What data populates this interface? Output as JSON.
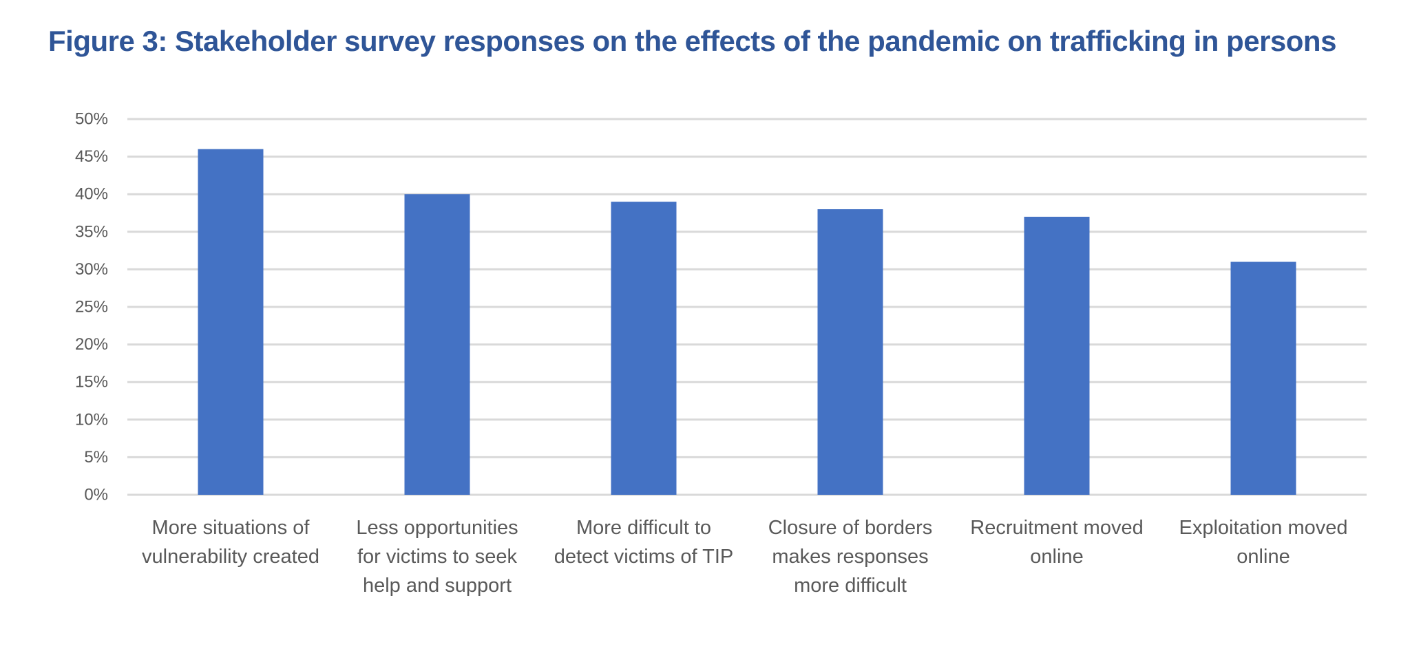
{
  "colors": {
    "title": "#2f5597",
    "bar": "#4472c4",
    "grid": "#d9d9d9",
    "text": "#595959"
  },
  "chart_data": {
    "type": "bar",
    "title": "Figure 3: Stakeholder survey responses on the effects of the pandemic on trafficking in persons",
    "xlabel": "",
    "ylabel": "",
    "ylim": [
      0,
      50
    ],
    "yticks": [
      0,
      5,
      10,
      15,
      20,
      25,
      30,
      35,
      40,
      45,
      50
    ],
    "ytick_labels": [
      "0%",
      "5%",
      "10%",
      "15%",
      "20%",
      "25%",
      "30%",
      "35%",
      "40%",
      "45%",
      "50%"
    ],
    "grid": true,
    "legend": "none",
    "categories": [
      [
        "More situations of",
        "vulnerability created"
      ],
      [
        "Less opportunities",
        "for victims to seek",
        "help and support"
      ],
      [
        "More difficult to",
        "detect victims of TIP"
      ],
      [
        "Closure of borders",
        "makes responses",
        "more difficult"
      ],
      [
        "Recruitment moved",
        "online"
      ],
      [
        "Exploitation moved",
        "online"
      ]
    ],
    "values": [
      46,
      40,
      39,
      38,
      37,
      31
    ]
  }
}
